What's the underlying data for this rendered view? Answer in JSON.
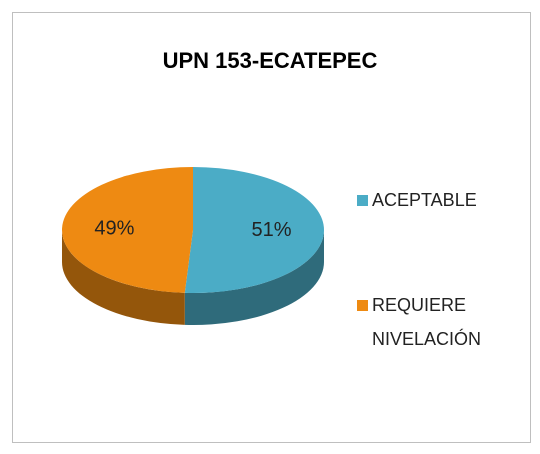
{
  "chart_data": {
    "type": "pie3d",
    "title": "UPN 153-ECATEPEC",
    "categories": [
      "ACEPTABLE",
      "REQUIERE NIVELACIÓN"
    ],
    "values": [
      51,
      49
    ],
    "value_labels": [
      "51%",
      "49%"
    ],
    "colors": [
      "#4bacc6",
      "#ee8a12"
    ],
    "legend": "right"
  }
}
